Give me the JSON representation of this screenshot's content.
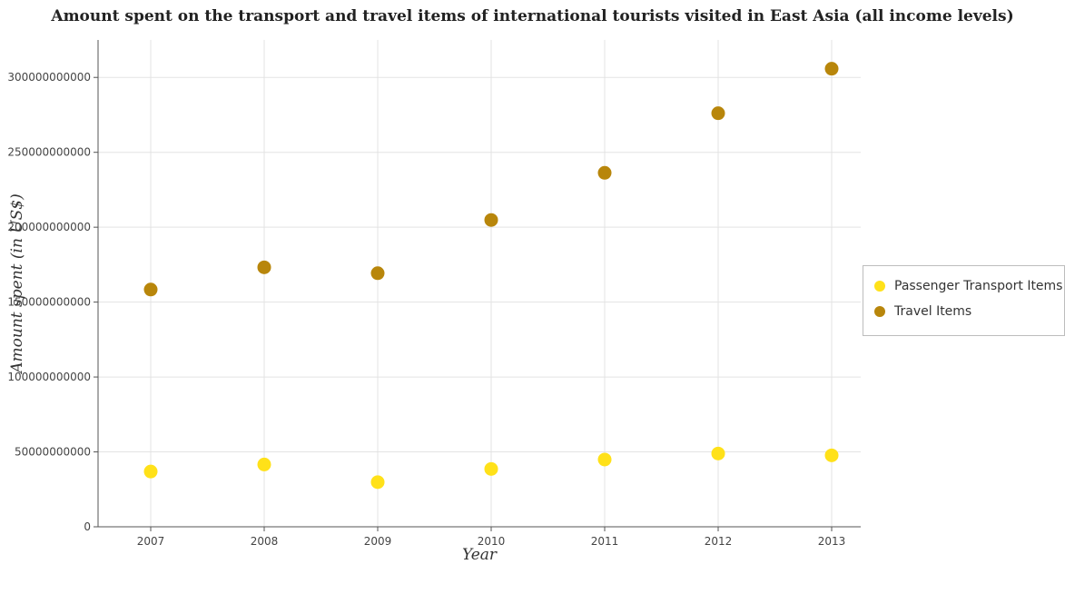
{
  "chart_data": {
    "type": "scatter",
    "title": "Amount spent on the transport and travel items of international tourists visited in East Asia (all income levels)",
    "xlabel": "Year",
    "ylabel": "Amount spent (in US$)",
    "x": [
      "2007",
      "2008",
      "2009",
      "2010",
      "2011",
      "2012",
      "2013"
    ],
    "ylim": [
      0,
      325000000000
    ],
    "yticks": [
      {
        "value": 0,
        "label": "0"
      },
      {
        "value": 50000000000,
        "label": "50000000000"
      },
      {
        "value": 100000000000,
        "label": "100000000000"
      },
      {
        "value": 150000000000,
        "label": "150000000000"
      },
      {
        "value": 200000000000,
        "label": "200000000000"
      },
      {
        "value": 250000000000,
        "label": "250000000000"
      },
      {
        "value": 300000000000,
        "label": "300000000000"
      }
    ],
    "grid": true,
    "legend_position": "right",
    "series": [
      {
        "name": "Passenger Transport Items",
        "color": "#ffe119",
        "values": [
          36900000000,
          41600000000,
          29800000000,
          38600000000,
          44900000000,
          48900000000,
          47700000000
        ]
      },
      {
        "name": "Travel Items",
        "color": "#b8860b",
        "values": [
          158400000000,
          173200000000,
          169300000000,
          204800000000,
          236300000000,
          276100000000,
          305800000000
        ]
      }
    ]
  }
}
